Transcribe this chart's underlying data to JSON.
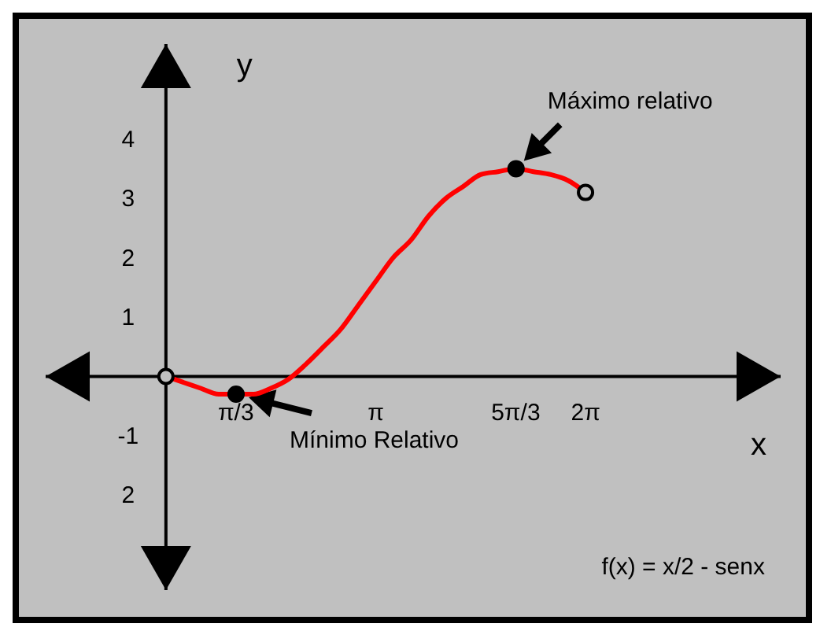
{
  "chart_data": {
    "type": "line",
    "xlabel": "x",
    "ylabel": "y",
    "xlim": [
      -1.8,
      9.2
    ],
    "ylim": [
      -3.6,
      5.6
    ],
    "xticks": [
      {
        "value": 1.047,
        "label": "π/3"
      },
      {
        "value": 3.142,
        "label": "π"
      },
      {
        "value": 5.236,
        "label": "5π/3"
      },
      {
        "value": 6.283,
        "label": "2π"
      }
    ],
    "yticks": [
      {
        "value": -2,
        "label": "2"
      },
      -1,
      1,
      2,
      3,
      4
    ],
    "series": [
      {
        "color": "#ff0000",
        "marker": "none",
        "line_style": "solid",
        "x": [
          0,
          0.26,
          0.52,
          0.79,
          1.05,
          1.31,
          1.57,
          1.83,
          2.09,
          2.36,
          2.62,
          2.88,
          3.14,
          3.4,
          3.67,
          3.93,
          4.19,
          4.45,
          4.71,
          4.97,
          5.24,
          5.5,
          5.76,
          6.02,
          6.28
        ],
        "values": [
          0,
          -0.1,
          -0.2,
          -0.3,
          -0.3,
          -0.3,
          -0.2,
          -0.05,
          0.2,
          0.5,
          0.8,
          1.2,
          1.6,
          2.0,
          2.3,
          2.7,
          3.0,
          3.2,
          3.4,
          3.45,
          3.5,
          3.45,
          3.4,
          3.3,
          3.1
        ]
      },
      {
        "type": "scatter",
        "color": "#000000",
        "marker": "circle",
        "x": [
          1.05,
          5.24
        ],
        "values": [
          -0.3,
          3.5
        ]
      },
      {
        "type": "scatter",
        "color": "#c0c0c0",
        "marker": "circle",
        "x": [
          0,
          6.28
        ],
        "values": [
          0,
          3.1
        ]
      }
    ],
    "annotations": [
      {
        "text": "Máximo relativo",
        "x": 5.24,
        "y": 3.5
      },
      {
        "text": "Mínimo Relativo",
        "x": 1.05,
        "y": -0.3
      },
      "f(x) = x/2 - senx"
    ]
  }
}
